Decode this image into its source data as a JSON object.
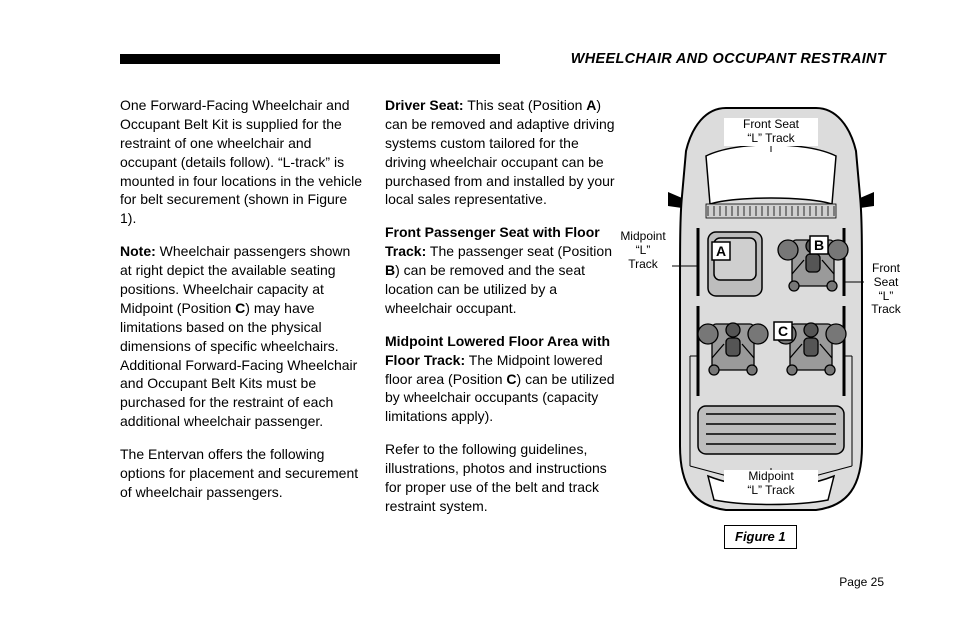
{
  "header": {
    "title": "WHEELCHAIR AND OCCUPANT RESTRAINT",
    "bar_color": "#000000"
  },
  "col1": {
    "p1": "One Forward-Facing Wheelchair and Occupant Belt Kit is supplied for the restraint of one wheelchair and occupant (details follow).  “L-track” is mounted in four locations in the vehicle for belt securement (shown in Figure 1).",
    "p2_bold": "Note:",
    "p2_rest": "  Wheelchair passengers shown at right depict the available seating positions.  Wheelchair capacity at Midpoint (Position ",
    "p2_c": "C",
    "p2_rest2": ") may have limitations based on the physical dimensions of specific wheelchairs.  Additional Forward-Facing Wheelchair and Occupant Belt Kits must be purchased for the restraint of each additional wheelchair passenger.",
    "p3": "The Entervan offers the following options for placement and securement of wheelchair passengers."
  },
  "col2": {
    "p1_bold": "Driver Seat:",
    "p1_rest": "  This seat (Position ",
    "p1_a": "A",
    "p1_rest2": ") can be removed and adaptive driving systems custom tailored for the driving wheelchair occupant can be purchased from and installed by your local sales representative.",
    "p2_bold": "Front Passenger Seat with Floor Track:",
    "p2_rest": "  The passenger seat (Position ",
    "p2_b": "B",
    "p2_rest2": ") can be removed and the seat location can be utilized by a wheelchair occupant.",
    "p3_bold": "Midpoint Lowered Floor Area with Floor Track:",
    "p3_rest": "  The Midpoint lowered floor area (Position ",
    "p3_c": "C",
    "p3_rest2": ") can be utilized by wheelchair occupants (capacity limitations apply).",
    "p4": "Refer to the following guidelines, illustrations, photos and instructions for proper use of the belt and track restraint system."
  },
  "figure": {
    "caption": "Figure 1",
    "labels": {
      "front_l_track": "Front Seat\n“L” Track",
      "midpoint_l_track_left": "Midpoint\n“L”\nTrack",
      "front_l_track_right": "Front\nSeat\n“L”\nTrack",
      "midpoint_l_track_bottom": "Midpoint\n“L” Track",
      "A": "A",
      "B": "B",
      "C": "C"
    },
    "colors": {
      "body_fill": "#dcdcdc",
      "stroke": "#000000",
      "seat_fill": "#bdbdbd",
      "wheelchair_fill": "#9a9a9a",
      "callout_bg": "#ffffff",
      "callout_border": "#000000"
    }
  },
  "page_number": "Page 25"
}
